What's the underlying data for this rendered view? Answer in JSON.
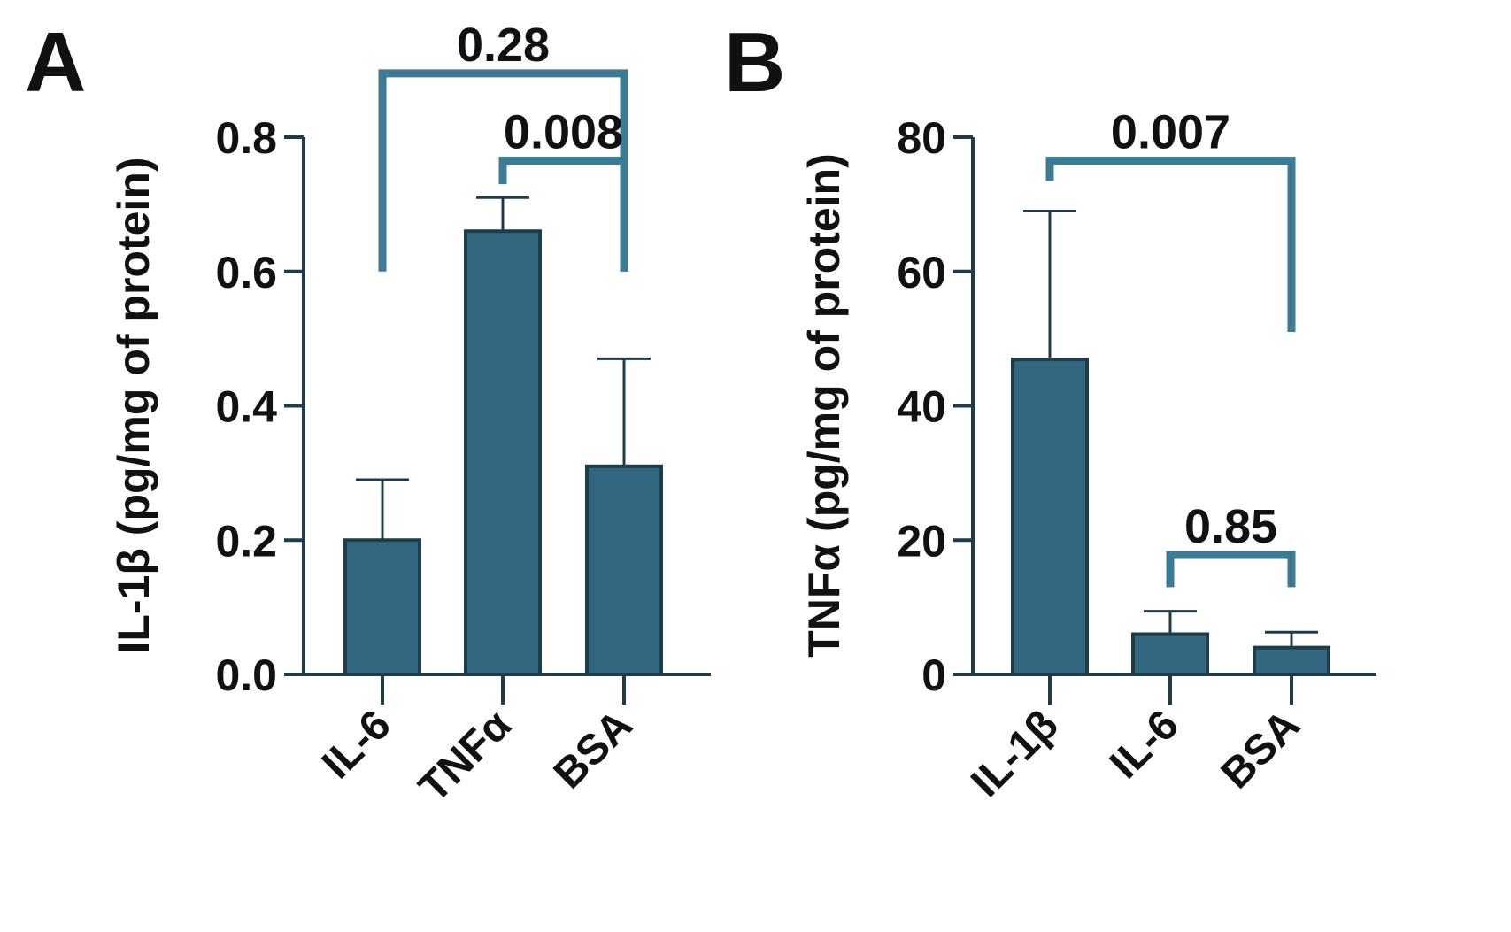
{
  "colors": {
    "bar_fill": "#33677f",
    "bar_edge": "#1e3d4b",
    "axis": "#1f3b48",
    "bracket": "#3d7a94",
    "text": "#111111"
  },
  "chart_data": [
    {
      "panel": "A",
      "type": "bar",
      "ylabel": "IL-1β (pg/mg of protein)",
      "ylim": [
        0,
        0.8
      ],
      "y_ticks": [
        "0.0",
        "0.2",
        "0.4",
        "0.6",
        "0.8"
      ],
      "y_tick_values": [
        0,
        0.2,
        0.4,
        0.6,
        0.8
      ],
      "categories": [
        "IL-6",
        "TNFα",
        "BSA"
      ],
      "values": [
        0.2,
        0.66,
        0.31
      ],
      "error_upper": [
        0.29,
        0.71,
        0.47
      ],
      "comparisons": [
        {
          "from": 0,
          "to": 2,
          "label": "0.28",
          "left_bottom": 0.6,
          "right_bottom": 0.6,
          "top": 0.895
        },
        {
          "from": 1,
          "to": 2,
          "label": "0.008",
          "left_bottom": 0.73,
          "right_bottom": 0.6,
          "top": 0.765
        }
      ]
    },
    {
      "panel": "B",
      "type": "bar",
      "ylabel": "TNFα (pg/mg of protein)",
      "ylim": [
        0,
        80
      ],
      "y_ticks": [
        "0",
        "20",
        "40",
        "60",
        "80"
      ],
      "y_tick_values": [
        0,
        20,
        40,
        60,
        80
      ],
      "categories": [
        "IL-1β",
        "IL-6",
        "BSA"
      ],
      "values": [
        46.9,
        6.0,
        4.0
      ],
      "error_upper": [
        69.0,
        9.4,
        6.3
      ],
      "comparisons": [
        {
          "from": 0,
          "to": 2,
          "label": "0.007",
          "left_bottom": 73.5,
          "right_bottom": 51.0,
          "top": 76.5
        },
        {
          "from": 1,
          "to": 2,
          "label": "0.85",
          "left_bottom": 13.0,
          "right_bottom": 13.0,
          "top": 17.8
        }
      ]
    }
  ]
}
